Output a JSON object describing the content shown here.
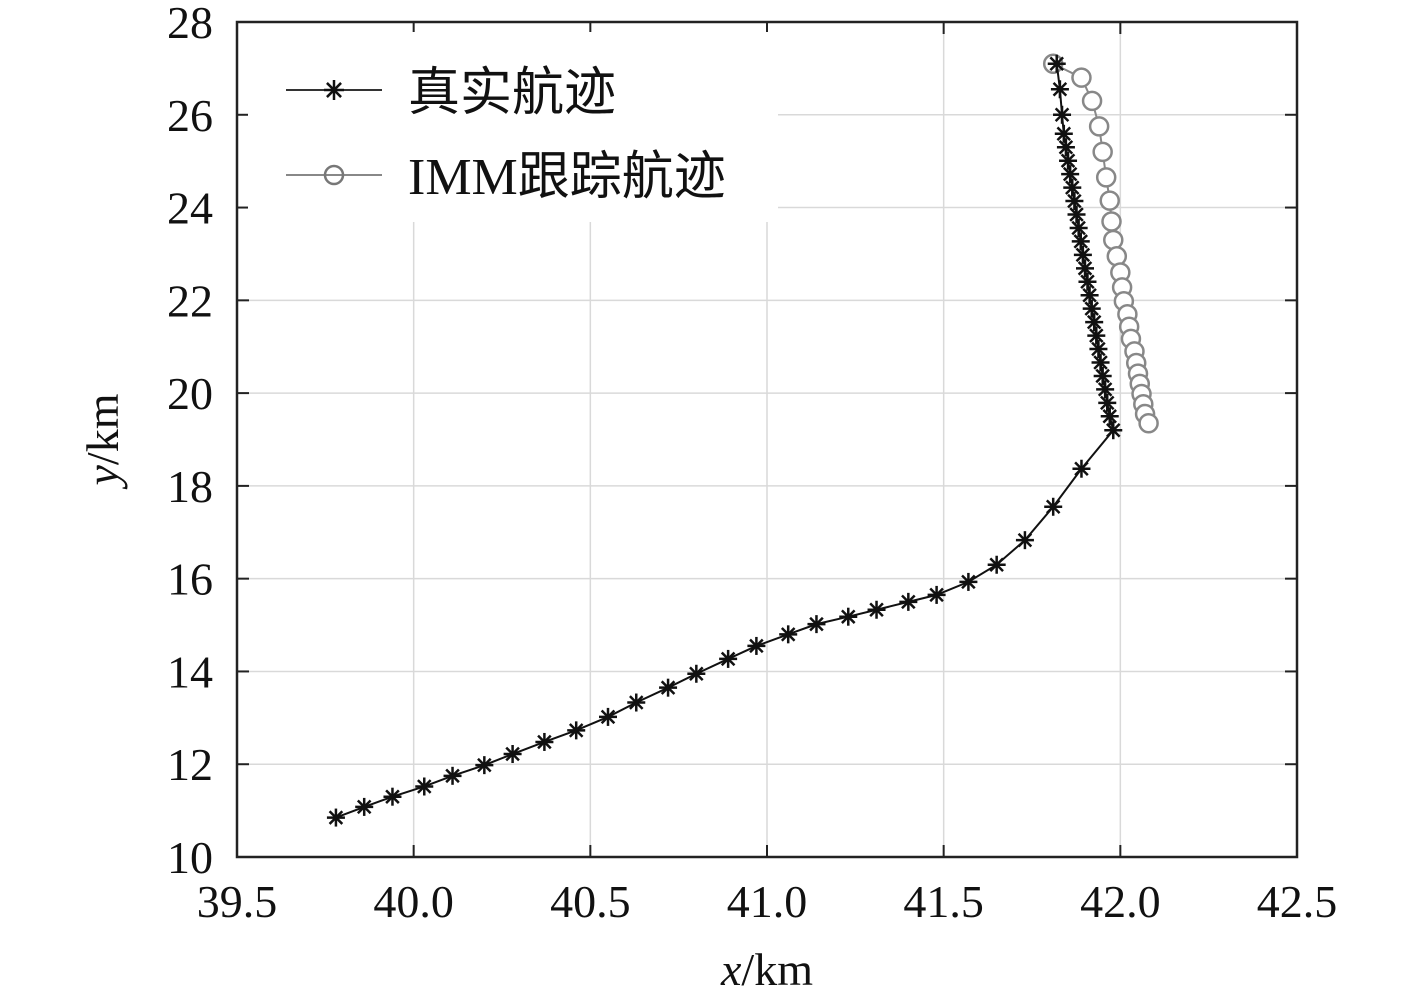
{
  "chart_data": {
    "type": "line",
    "title": "",
    "xlabel": {
      "var": "x",
      "unit": "/km"
    },
    "ylabel": {
      "var": "y",
      "unit": "/km"
    },
    "xlim": [
      39.5,
      42.5
    ],
    "ylim": [
      10,
      28
    ],
    "xticks": [
      "39.5",
      "40.0",
      "40.5",
      "41.0",
      "41.5",
      "42.0",
      "42.5"
    ],
    "yticks": [
      "10",
      "12",
      "14",
      "16",
      "18",
      "20",
      "22",
      "24",
      "26",
      "28"
    ],
    "grid": true,
    "legend_position": "top-left",
    "series": [
      {
        "name": "真实航迹",
        "marker": "asterisk",
        "color": "#111111",
        "x": [
          39.78,
          39.86,
          39.94,
          40.03,
          40.11,
          40.2,
          40.28,
          40.37,
          40.46,
          40.55,
          40.63,
          40.72,
          40.8,
          40.89,
          40.97,
          41.06,
          41.14,
          41.23,
          41.31,
          41.4,
          41.48,
          41.57,
          41.65,
          41.73,
          41.81,
          41.89,
          41.98,
          41.97,
          41.963,
          41.957,
          41.95,
          41.944,
          41.938,
          41.932,
          41.926,
          41.919,
          41.913,
          41.907,
          41.9,
          41.894,
          41.888,
          41.882,
          41.876,
          41.87,
          41.864,
          41.858,
          41.852,
          41.846,
          41.84,
          41.835,
          41.829,
          41.82
        ],
        "y": [
          10.85,
          11.08,
          11.3,
          11.52,
          11.75,
          11.98,
          12.22,
          12.48,
          12.73,
          13.02,
          13.33,
          13.65,
          13.95,
          14.27,
          14.55,
          14.8,
          15.02,
          15.18,
          15.33,
          15.5,
          15.65,
          15.93,
          16.3,
          16.83,
          17.55,
          18.37,
          19.2,
          19.5,
          19.79,
          20.08,
          20.37,
          20.66,
          20.95,
          21.24,
          21.53,
          21.82,
          22.11,
          22.4,
          22.69,
          22.98,
          23.27,
          23.56,
          23.85,
          24.14,
          24.43,
          24.72,
          25.01,
          25.3,
          25.59,
          26.0,
          26.55,
          27.1
        ]
      },
      {
        "name": "IMM跟踪航迹",
        "marker": "circle",
        "color": "#888888",
        "x": [
          41.81,
          41.89,
          41.92,
          41.94,
          41.95,
          41.96,
          41.97,
          41.975,
          41.98,
          41.99,
          42.0,
          42.005,
          42.01,
          42.02,
          42.025,
          42.03,
          42.04,
          42.045,
          42.05,
          42.055,
          42.06,
          42.065,
          42.07,
          42.08
        ],
        "y": [
          27.1,
          26.8,
          26.3,
          25.75,
          25.2,
          24.65,
          24.15,
          23.7,
          23.3,
          22.95,
          22.6,
          22.28,
          21.98,
          21.7,
          21.43,
          21.17,
          20.9,
          20.65,
          20.42,
          20.2,
          19.98,
          19.76,
          19.55,
          19.35
        ]
      }
    ]
  }
}
